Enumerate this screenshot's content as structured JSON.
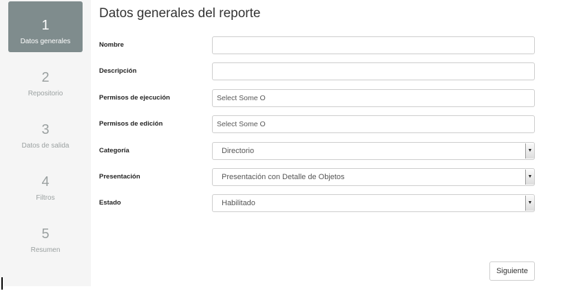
{
  "steps": [
    {
      "number": "1",
      "label": "Datos generales",
      "active": true
    },
    {
      "number": "2",
      "label": "Repositorio"
    },
    {
      "number": "3",
      "label": "Datos de salida"
    },
    {
      "number": "4",
      "label": "Filtros"
    },
    {
      "number": "5",
      "label": "Resumen"
    }
  ],
  "title": "Datos generales del reporte",
  "fields": {
    "nombre": {
      "label": "Nombre",
      "value": ""
    },
    "descripcion": {
      "label": "Descripción",
      "value": ""
    },
    "permisos_ejecucion": {
      "label": "Permisos de ejecución",
      "placeholder": "Select Some O"
    },
    "permisos_edicion": {
      "label": "Permisos de edición",
      "placeholder": "Select Some O"
    },
    "categoria": {
      "label": "Categoría",
      "value": "Directorio"
    },
    "presentacion": {
      "label": "Presentación",
      "value": "Presentación con Detalle de Objetos"
    },
    "estado": {
      "label": "Estado",
      "value": "Habilitado"
    }
  },
  "next_button": "Siguiente"
}
